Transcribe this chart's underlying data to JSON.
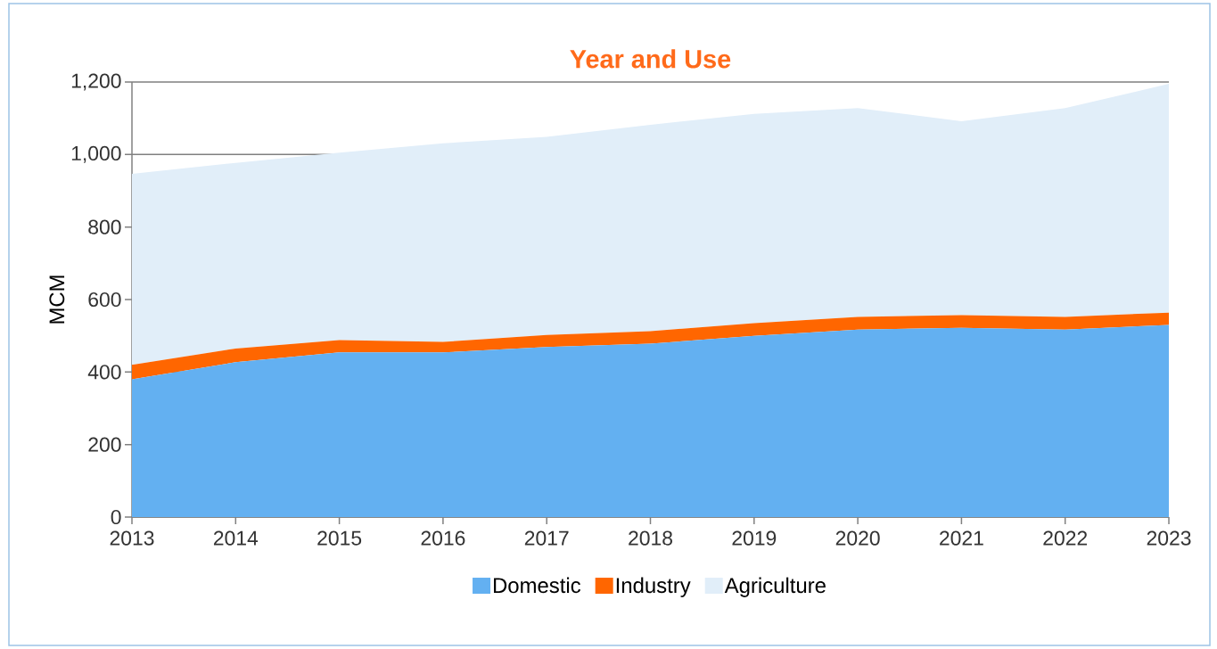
{
  "chart_data": {
    "type": "area",
    "title": "Year and Use",
    "ylabel": "MCM",
    "stacked": true,
    "x": [
      2013,
      2014,
      2015,
      2016,
      2017,
      2018,
      2019,
      2020,
      2021,
      2022,
      2023
    ],
    "series": [
      {
        "name": "Domestic",
        "color": "#63b0f1",
        "values": [
          380,
          427,
          454,
          454,
          469,
          478,
          500,
          517,
          522,
          517,
          530
        ]
      },
      {
        "name": "Industry",
        "color": "#ff6600",
        "values": [
          40,
          38,
          34,
          29,
          33,
          35,
          35,
          35,
          35,
          35,
          34
        ]
      },
      {
        "name": "Agriculture",
        "color": "#e1eef9",
        "values": [
          527,
          512,
          517,
          548,
          547,
          569,
          577,
          576,
          535,
          576,
          631
        ]
      }
    ],
    "xlim": [
      2013,
      2023
    ],
    "xticks": [
      2013,
      2014,
      2015,
      2016,
      2017,
      2018,
      2019,
      2020,
      2021,
      2022,
      2023
    ],
    "ylim": [
      0,
      1200
    ],
    "yticks": [
      0,
      200,
      400,
      600,
      800,
      {
        "value": 1000,
        "label": "1,000"
      },
      {
        "value": 1200,
        "label": "1,200"
      }
    ],
    "grid": "y",
    "legend": "bottom"
  }
}
